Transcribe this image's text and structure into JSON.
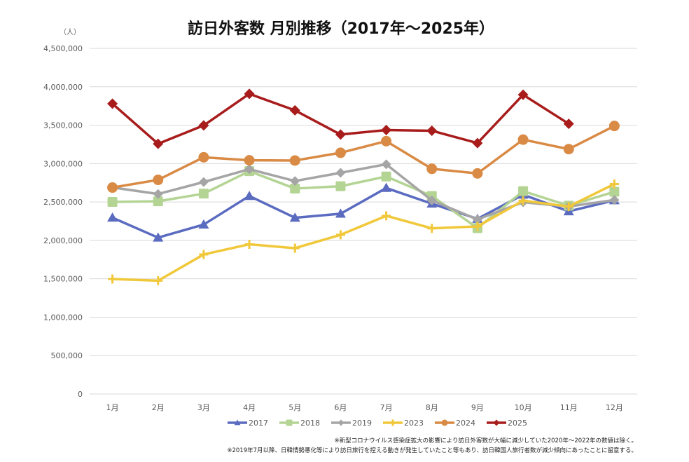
{
  "chart_data": {
    "type": "line",
    "title": "訪日外客数 月別推移（2017年～2025年）",
    "unit_label": "（人）",
    "xlabel": "",
    "ylabel": "",
    "ylim": [
      0,
      4500000
    ],
    "y_ticks": [
      0,
      500000,
      1000000,
      1500000,
      2000000,
      2500000,
      3000000,
      3500000,
      4000000,
      4500000
    ],
    "y_tick_labels": [
      "0",
      "500,000",
      "1,000,000",
      "1,500,000",
      "2,000,000",
      "2,500,000",
      "3,000,000",
      "3,500,000",
      "4,000,000",
      "4,500,000"
    ],
    "grid": true,
    "legend_position": "bottom",
    "categories": [
      "1月",
      "2月",
      "3月",
      "4月",
      "5月",
      "6月",
      "7月",
      "8月",
      "9月",
      "10月",
      "11月",
      "12月"
    ],
    "series": [
      {
        "name": "2017",
        "color": "#5b6bc0",
        "marker": "triangle",
        "values": [
          2296000,
          2036000,
          2206000,
          2578000,
          2295000,
          2347000,
          2682000,
          2478000,
          2280000,
          2595000,
          2378000,
          2521000
        ]
      },
      {
        "name": "2018",
        "color": "#b4d494",
        "marker": "square",
        "values": [
          2501000,
          2509000,
          2609000,
          2901000,
          2675000,
          2705000,
          2832000,
          2578000,
          2160000,
          2641000,
          2452000,
          2633000
        ]
      },
      {
        "name": "2019",
        "color": "#a5a5a5",
        "marker": "diamond",
        "values": [
          2689000,
          2604000,
          2760000,
          2927000,
          2773000,
          2880000,
          2991000,
          2520000,
          2273000,
          2497000,
          2441000,
          2526000
        ]
      },
      {
        "name": "2023",
        "color": "#f0c83a",
        "marker": "plus",
        "values": [
          1497000,
          1475000,
          1817000,
          1949000,
          1899000,
          2073000,
          2320000,
          2157000,
          2182000,
          2517000,
          2441000,
          2734000
        ]
      },
      {
        "name": "2024",
        "color": "#d98a44",
        "marker": "circle",
        "values": [
          2688000,
          2788000,
          3082000,
          3043000,
          3040000,
          3141000,
          3292000,
          2932000,
          2872000,
          3312000,
          3188000,
          3490000
        ]
      },
      {
        "name": "2025",
        "color": "#a81c1c",
        "marker": "diamond",
        "values": [
          3780000,
          3258000,
          3497000,
          3908000,
          3693000,
          3378000,
          3437000,
          3428000,
          3267000,
          3896000,
          3518000,
          null
        ]
      }
    ],
    "notes": [
      "※新型コロナウイルス感染症拡大の影響により訪日外客数が大幅に減少していた2020年～2022年の数値は除く。",
      "※2019年7月以降、日韓情勢悪化等により訪日旅行を控える動きが発生していたこと等もあり、訪日韓国人旅行者数が減少傾向にあったことに留意する。"
    ]
  }
}
